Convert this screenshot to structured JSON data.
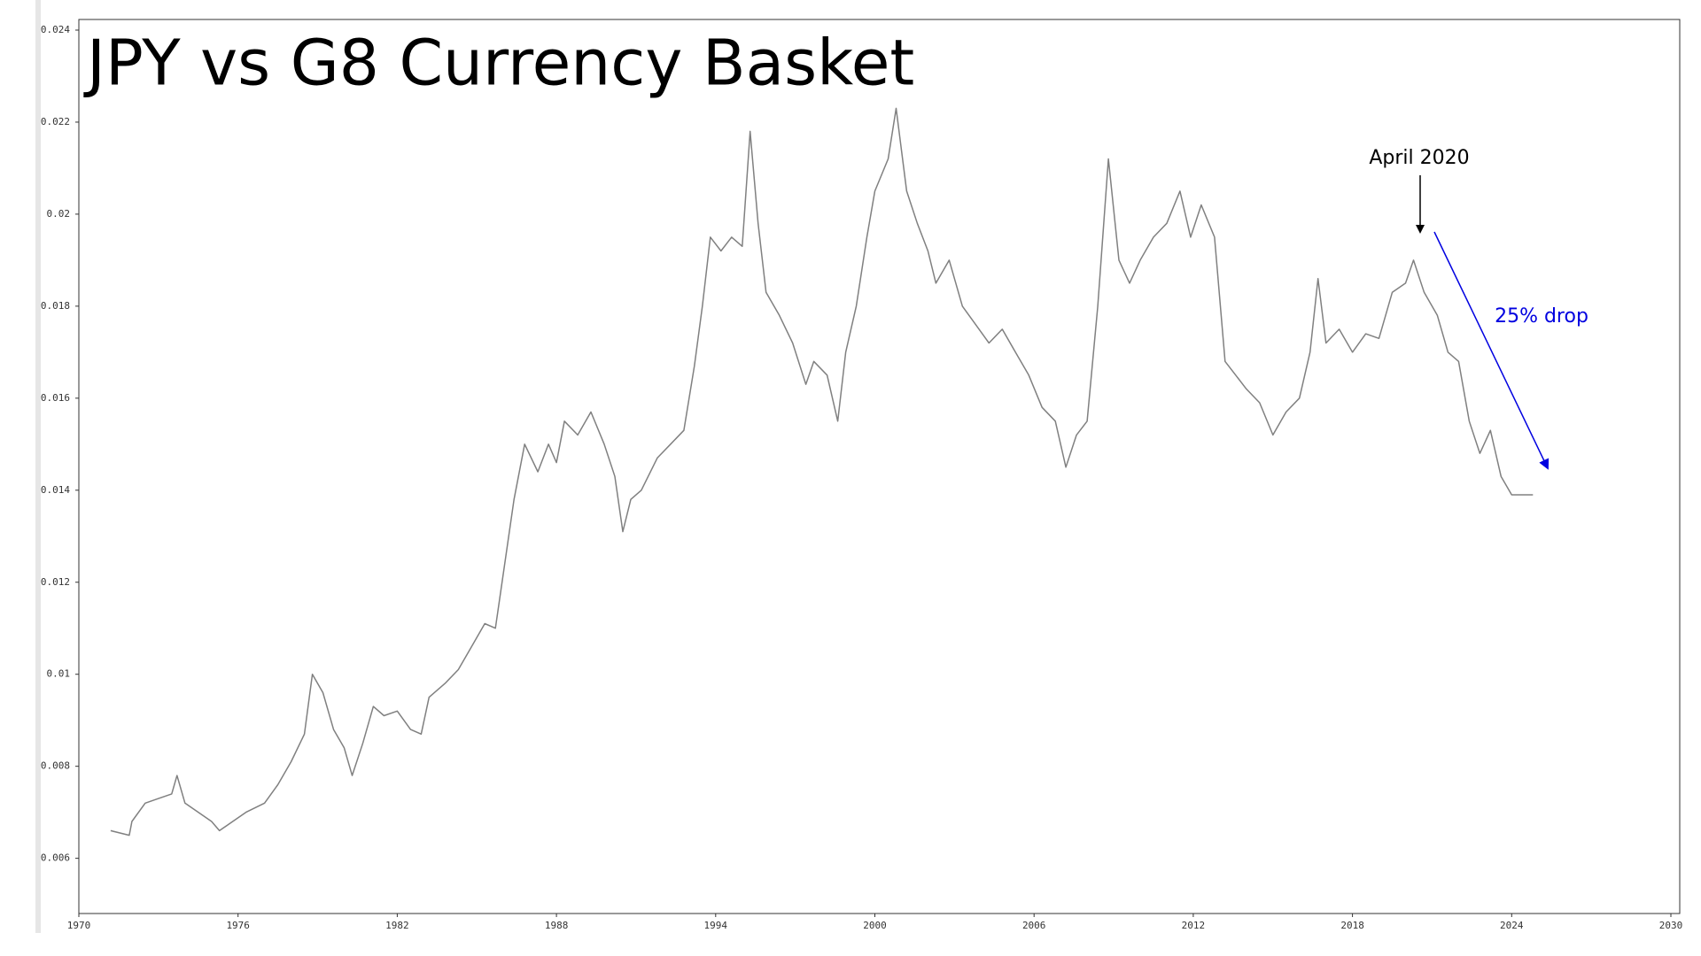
{
  "chart_data": {
    "type": "line",
    "title": "JPY vs G8 Currency Basket",
    "annotations": [
      "April 2020",
      "25% drop"
    ],
    "xlim": [
      1970,
      2030
    ],
    "xticks": [
      1970,
      1976,
      1982,
      1988,
      1994,
      2000,
      2006,
      2012,
      2018,
      2024,
      2030
    ],
    "ylim": [
      0.0048,
      0.024
    ],
    "yticks": [
      0.006,
      0.008,
      0.01,
      0.012,
      0.014,
      0.016,
      0.018,
      0.02,
      0.022,
      0.024
    ],
    "grid": false,
    "series": [
      {
        "color": "#808080",
        "x": [
          1971.2,
          1971.9,
          1972.0,
          1972.5,
          1973.0,
          1973.5,
          1973.7,
          1974.0,
          1974.5,
          1975.0,
          1975.3,
          1975.8,
          1976.3,
          1977.0,
          1977.5,
          1978.0,
          1978.5,
          1978.8,
          1979.2,
          1979.6,
          1980.0,
          1980.3,
          1980.7,
          1981.1,
          1981.5,
          1982.0,
          1982.5,
          1982.9,
          1983.2,
          1983.8,
          1984.3,
          1984.8,
          1985.3,
          1985.7,
          1986.0,
          1986.4,
          1986.8,
          1987.3,
          1987.7,
          1988.0,
          1988.3,
          1988.8,
          1989.3,
          1989.8,
          1990.2,
          1990.5,
          1990.8,
          1991.2,
          1991.8,
          1992.3,
          1992.8,
          1993.2,
          1993.5,
          1993.8,
          1994.2,
          1994.6,
          1995.0,
          1995.3,
          1995.6,
          1995.9,
          1996.4,
          1996.9,
          1997.4,
          1997.7,
          1998.2,
          1998.6,
          1998.9,
          1999.3,
          1999.7,
          2000.0,
          2000.5,
          2000.8,
          2001.2,
          2001.6,
          2002.0,
          2002.3,
          2002.8,
          2003.3,
          2003.8,
          2004.3,
          2004.8,
          2005.3,
          2005.8,
          2006.3,
          2006.8,
          2007.2,
          2007.6,
          2008.0,
          2008.4,
          2008.8,
          2009.2,
          2009.6,
          2010.0,
          2010.5,
          2011.0,
          2011.5,
          2011.9,
          2012.3,
          2012.8,
          2013.2,
          2013.6,
          2014.0,
          2014.5,
          2015.0,
          2015.5,
          2016.0,
          2016.4,
          2016.7,
          2017.0,
          2017.5,
          2018.0,
          2018.5,
          2019.0,
          2019.5,
          2020.0,
          2020.3,
          2020.7,
          2021.2,
          2021.6,
          2022.0,
          2022.4,
          2022.8,
          2023.2,
          2023.6,
          2024.0,
          2024.8
        ],
        "values": [
          0.0066,
          0.0065,
          0.0068,
          0.0072,
          0.0073,
          0.0074,
          0.0078,
          0.0072,
          0.007,
          0.0068,
          0.0066,
          0.0068,
          0.007,
          0.0072,
          0.0076,
          0.0081,
          0.0087,
          0.01,
          0.0096,
          0.0088,
          0.0084,
          0.0078,
          0.0085,
          0.0093,
          0.0091,
          0.0092,
          0.0088,
          0.0087,
          0.0095,
          0.0098,
          0.0101,
          0.0106,
          0.0111,
          0.011,
          0.0122,
          0.0138,
          0.015,
          0.0144,
          0.015,
          0.0146,
          0.0155,
          0.0152,
          0.0157,
          0.015,
          0.0143,
          0.0131,
          0.0138,
          0.014,
          0.0147,
          0.015,
          0.0153,
          0.0167,
          0.018,
          0.0195,
          0.0192,
          0.0195,
          0.0193,
          0.0218,
          0.0198,
          0.0183,
          0.0178,
          0.0172,
          0.0163,
          0.0168,
          0.0165,
          0.0155,
          0.017,
          0.018,
          0.0195,
          0.0205,
          0.0212,
          0.0223,
          0.0205,
          0.0198,
          0.0192,
          0.0185,
          0.019,
          0.018,
          0.0176,
          0.0172,
          0.0175,
          0.017,
          0.0165,
          0.0158,
          0.0155,
          0.0145,
          0.0152,
          0.0155,
          0.018,
          0.0212,
          0.019,
          0.0185,
          0.019,
          0.0195,
          0.0198,
          0.0205,
          0.0195,
          0.0202,
          0.0195,
          0.0168,
          0.0165,
          0.0162,
          0.0159,
          0.0152,
          0.0157,
          0.016,
          0.017,
          0.0186,
          0.0172,
          0.0175,
          0.017,
          0.0174,
          0.0173,
          0.0183,
          0.0185,
          0.019,
          0.0183,
          0.0178,
          0.017,
          0.0168,
          0.0155,
          0.0148,
          0.0153,
          0.0143,
          0.0139,
          0.0139
        ]
      }
    ]
  }
}
